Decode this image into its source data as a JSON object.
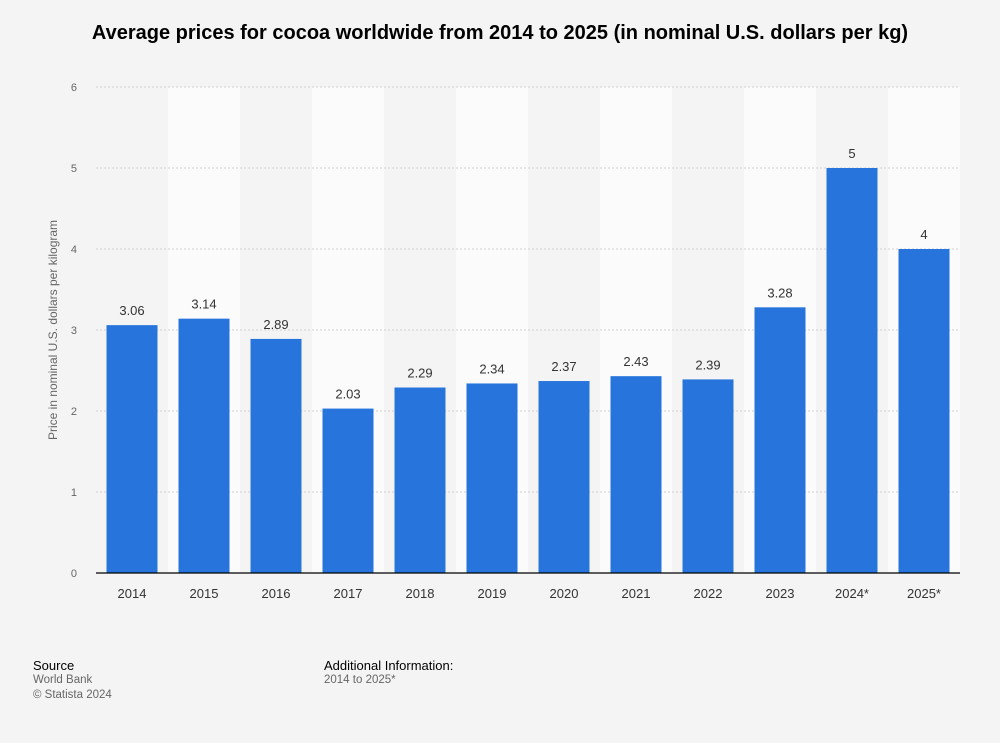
{
  "chart_data": {
    "type": "bar",
    "title": "Average prices for cocoa worldwide from 2014 to 2025 (in nominal U.S. dollars per kg)",
    "xlabel": "",
    "ylabel": "Price in nominal U.S. dollars per kilogram",
    "categories": [
      "2014",
      "2015",
      "2016",
      "2017",
      "2018",
      "2019",
      "2020",
      "2021",
      "2022",
      "2023",
      "2024*",
      "2025*"
    ],
    "values": [
      3.06,
      3.14,
      2.89,
      2.03,
      2.29,
      2.34,
      2.37,
      2.43,
      2.39,
      3.28,
      5,
      4
    ],
    "ylim": [
      0,
      6
    ],
    "yticks": [
      0,
      1,
      2,
      3,
      4,
      5,
      6
    ],
    "grid": true,
    "bar_color": "#2775dc"
  },
  "footer": {
    "source_heading": "Source",
    "source_lines": [
      "World Bank",
      "© Statista 2024"
    ],
    "additional_heading": "Additional Information:",
    "additional_lines": [
      "2014 to 2025*"
    ]
  }
}
